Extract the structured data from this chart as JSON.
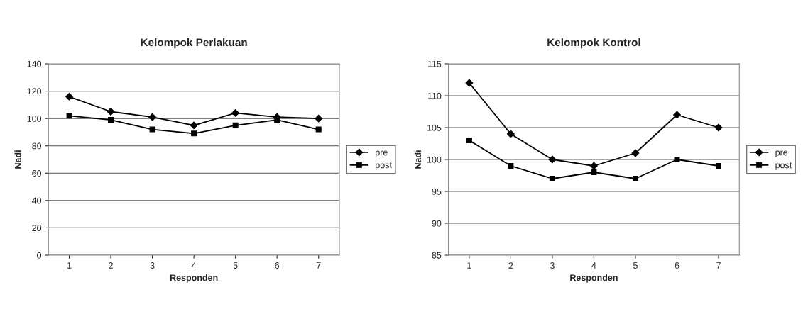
{
  "chart_data": [
    {
      "type": "line",
      "title": "Kelompok Perlakuan",
      "xlabel": "Responden",
      "ylabel": "Nadi",
      "categories": [
        "1",
        "2",
        "3",
        "4",
        "5",
        "6",
        "7"
      ],
      "ylim": [
        0,
        140
      ],
      "yticks": [
        0,
        20,
        40,
        60,
        80,
        100,
        120,
        140
      ],
      "grid": "y",
      "legend": "right",
      "series": [
        {
          "name": "pre",
          "color": "#000000",
          "marker": "diamond",
          "values": [
            116,
            105,
            101,
            95,
            104,
            101,
            100
          ]
        },
        {
          "name": "post",
          "color": "#000000",
          "marker": "square",
          "values": [
            102,
            99,
            92,
            89,
            95,
            99,
            92
          ]
        }
      ]
    },
    {
      "type": "line",
      "title": "Kelompok Kontrol",
      "xlabel": "Responden",
      "ylabel": "Nadi",
      "categories": [
        "1",
        "2",
        "3",
        "4",
        "5",
        "6",
        "7"
      ],
      "ylim": [
        85,
        115
      ],
      "yticks": [
        85,
        90,
        95,
        100,
        105,
        110,
        115
      ],
      "grid": "y",
      "legend": "right",
      "series": [
        {
          "name": "pre",
          "color": "#000000",
          "marker": "diamond",
          "values": [
            112,
            104,
            100,
            99,
            101,
            107,
            105
          ]
        },
        {
          "name": "post",
          "color": "#000000",
          "marker": "square",
          "values": [
            103,
            99,
            97,
            98,
            97,
            100,
            99
          ]
        }
      ]
    }
  ]
}
